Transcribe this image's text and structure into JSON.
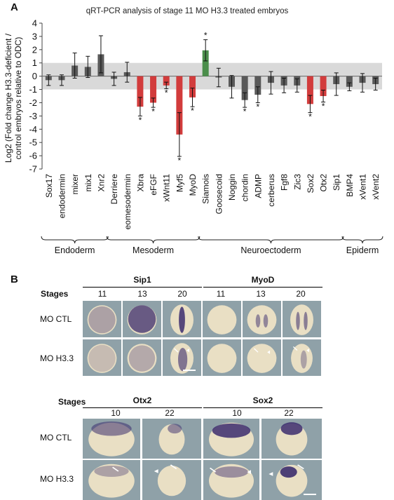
{
  "panels": {
    "a": "A",
    "b": "B"
  },
  "chart_data": {
    "type": "bar",
    "title": "qRT-PCR analysis of stage 11 MO H3.3 treated embryos",
    "ylabel_lines": [
      "Log2 (Fold change H3.3-deficient /",
      "control embryos relative to ODC)"
    ],
    "ylim": [
      -7,
      4
    ],
    "yticks": [
      4,
      3,
      2,
      1,
      0,
      -1,
      -2,
      -3,
      -4,
      -5,
      -6,
      -7
    ],
    "shaded_band": [
      -1,
      1
    ],
    "grid": false,
    "categories": [
      "Sox17",
      "endodermin",
      "mixer",
      "mix1",
      "Xnr2",
      "Derriere",
      "eomesodermin",
      "Xbra",
      "eFGF",
      "xWnt11",
      "Myf5",
      "MyoD",
      "Siamois",
      "Goosecoid",
      "Noggin",
      "chordin",
      "ADMP",
      "cerberus",
      "Fgf8",
      "Zic3",
      "Sox2",
      "Otx2",
      "Sip1",
      "BMP4",
      "xVent1",
      "xVent2"
    ],
    "values": [
      -0.3,
      -0.3,
      0.8,
      0.7,
      1.65,
      -0.2,
      0.3,
      -2.3,
      -2.0,
      -0.7,
      -4.4,
      -1.6,
      1.95,
      -0.1,
      -0.8,
      -1.8,
      -1.4,
      -0.5,
      -0.7,
      -0.7,
      -2.1,
      -1.5,
      -0.6,
      -0.8,
      -0.5,
      -0.6
    ],
    "errors": [
      0.4,
      0.4,
      0.95,
      0.8,
      1.4,
      0.5,
      0.75,
      0.7,
      0.35,
      0.25,
      1.65,
      0.7,
      0.8,
      0.7,
      0.85,
      0.55,
      0.6,
      0.85,
      0.55,
      0.5,
      0.65,
      0.45,
      0.85,
      0.3,
      0.7,
      0.45
    ],
    "colors": [
      "#595959",
      "#595959",
      "#595959",
      "#595959",
      "#595959",
      "#595959",
      "#595959",
      "#d23c3c",
      "#d23c3c",
      "#d23c3c",
      "#d23c3c",
      "#d23c3c",
      "#4b8e4b",
      "#595959",
      "#595959",
      "#595959",
      "#595959",
      "#595959",
      "#595959",
      "#595959",
      "#d23c3c",
      "#d23c3c",
      "#595959",
      "#595959",
      "#595959",
      "#595959"
    ],
    "significant": [
      7,
      8,
      9,
      10,
      11,
      12,
      15,
      16,
      20,
      21
    ],
    "asterisk": "*",
    "groups": [
      {
        "label": "Endoderm",
        "from": 0,
        "to": 4
      },
      {
        "label": "Mesoderm",
        "from": 5,
        "to": 11
      },
      {
        "label": "Neuroectoderm",
        "from": 12,
        "to": 22
      },
      {
        "label": "Epiderm",
        "from": 23,
        "to": 25
      }
    ]
  },
  "panel_b": {
    "stages_label": "Stages",
    "row_ctl": "MO CTL",
    "row_h33": "MO H3.3",
    "sip1": "Sip1",
    "myod": "MyoD",
    "otx2": "Otx2",
    "sox2": "Sox2",
    "stages_top": [
      "11",
      "13",
      "20"
    ],
    "stages_bottom": [
      "10",
      "22"
    ],
    "colors": {
      "background": "#8fa1a8",
      "embryo": "#e9dfc4",
      "stain": "#3c2d6e",
      "marker": "#ffffff"
    }
  }
}
